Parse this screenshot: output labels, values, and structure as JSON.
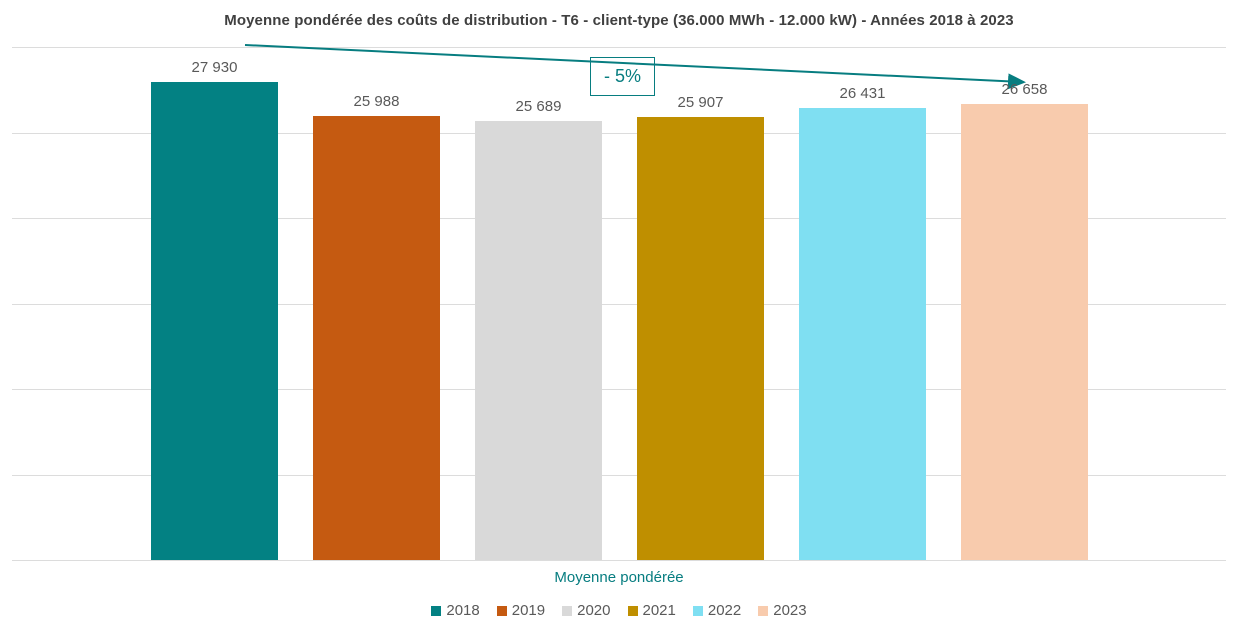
{
  "title": "Moyenne pondérée des coûts de distribution - T6 - client-type (36.000 MWh - 12.000 kW) - Années 2018 à 2023",
  "annotation": {
    "label": "- 5%"
  },
  "x_axis_label": "Moyenne pondérée",
  "colors": {
    "accent_teal": "#077d80",
    "title_text": "#404040",
    "data_label_text": "#595959",
    "legend_text": "#595959",
    "gridline": "#dcdcdc",
    "background": "#ffffff"
  },
  "chart_data": {
    "type": "bar",
    "title": "Moyenne pondérée des coûts de distribution - T6 - client-type (36.000 MWh - 12.000 kW) - Années 2018 à 2023",
    "categories": [
      "Moyenne pondérée"
    ],
    "series": [
      {
        "name": "2018",
        "values": [
          27930
        ],
        "display_value": "27 930",
        "color": "#038183"
      },
      {
        "name": "2019",
        "values": [
          25988
        ],
        "display_value": "25 988",
        "color": "#c55a11"
      },
      {
        "name": "2020",
        "values": [
          25689
        ],
        "display_value": "25 689",
        "color": "#d9d9d9"
      },
      {
        "name": "2021",
        "values": [
          25907
        ],
        "display_value": "25 907",
        "color": "#bf8f00"
      },
      {
        "name": "2022",
        "values": [
          26431
        ],
        "display_value": "26 431",
        "color": "#7fdff2"
      },
      {
        "name": "2023",
        "values": [
          26658
        ],
        "display_value": "26 658",
        "color": "#f8cbad"
      }
    ],
    "xlabel": "Moyenne pondérée",
    "ylabel": "",
    "ylim": [
      0,
      30000
    ],
    "gridline_step": 5000,
    "grid": true,
    "legend_position": "bottom",
    "annotations": [
      {
        "text": "- 5%",
        "type": "boxed-label"
      },
      {
        "type": "trend-arrow",
        "from_series": "2018",
        "to_series": "2023",
        "direction": "down"
      }
    ]
  }
}
